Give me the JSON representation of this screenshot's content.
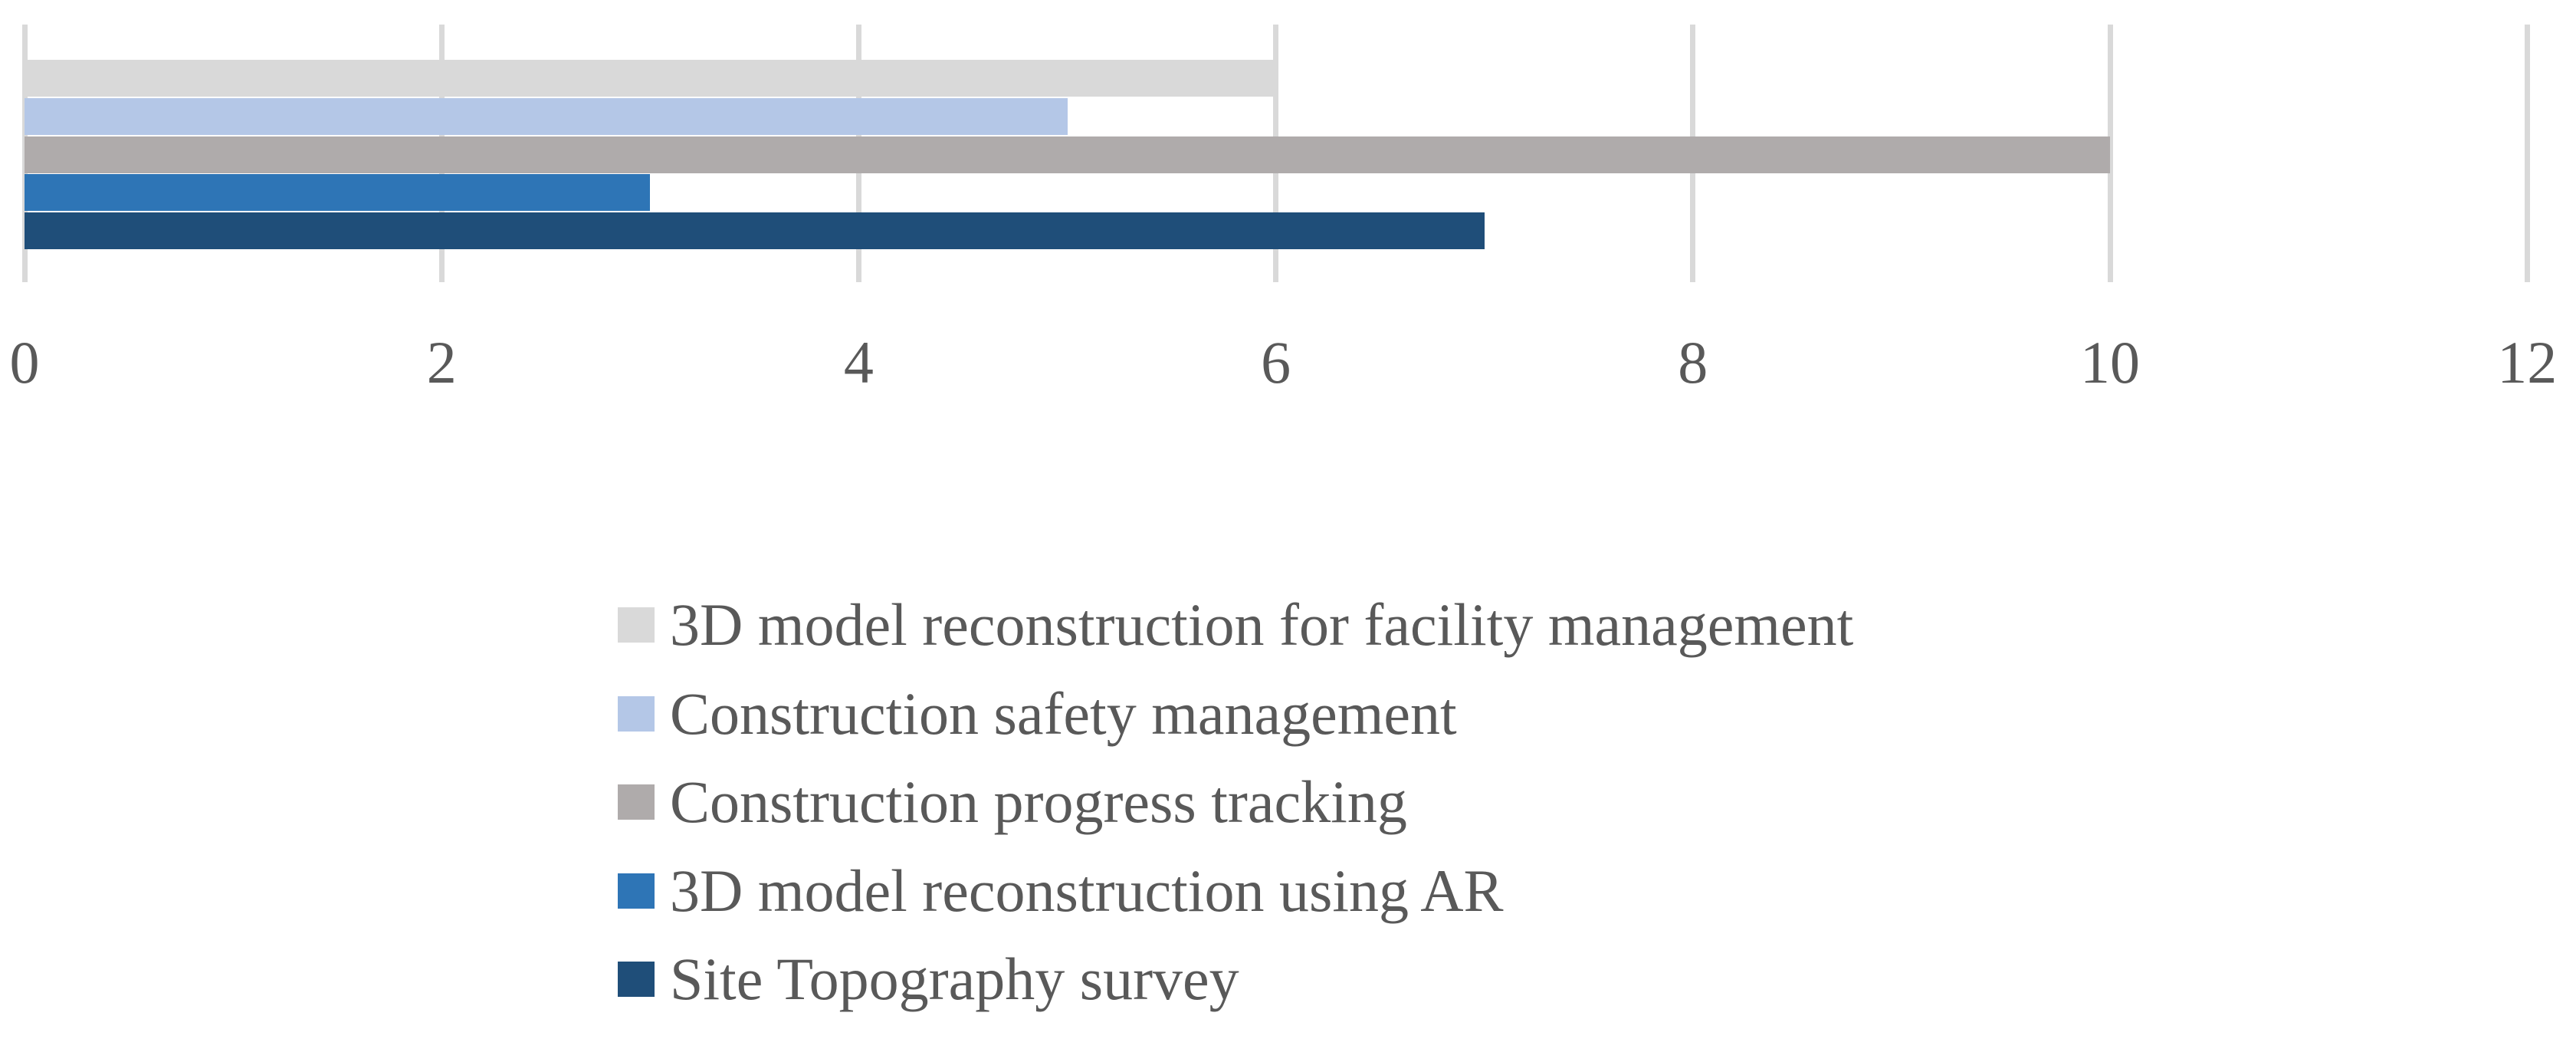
{
  "chart_data": {
    "type": "bar",
    "orientation": "horizontal",
    "title": "",
    "xlabel": "",
    "ylabel": "",
    "categories": [
      "3D model reconstruction for facility management",
      "Construction safety management",
      "Construction progress tracking",
      "3D model reconstruction using AR",
      "Site Topography survey"
    ],
    "values": [
      6,
      5,
      10,
      3,
      7
    ],
    "colors": [
      "#D9D9D9",
      "#B4C7E7",
      "#AFABAB",
      "#2E75B6",
      "#1F4E79"
    ],
    "xlim": [
      0,
      12
    ],
    "xticks": [
      0,
      2,
      4,
      6,
      8,
      10,
      12
    ],
    "xtick_labels": [
      "0",
      "2",
      "4",
      "6",
      "8",
      "10",
      "12"
    ],
    "grid": true,
    "legend_position": "bottom"
  },
  "style": {
    "gridline_color": "#D9D9D9",
    "text_color": "#595959",
    "background_color": "#ffffff"
  }
}
